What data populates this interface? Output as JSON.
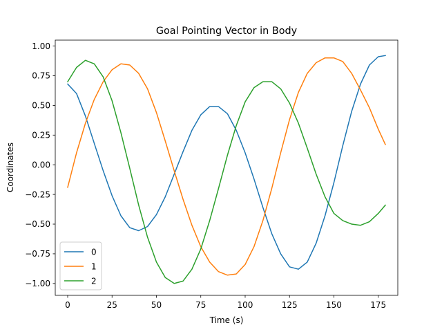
{
  "chart_data": {
    "type": "line",
    "title": "Goal Pointing Vector in Body",
    "xlabel": "Time (s)",
    "ylabel": "Coordinates",
    "xlim": [
      -7,
      186
    ],
    "ylim": [
      -1.1,
      1.05
    ],
    "xticks": [
      0,
      25,
      50,
      75,
      100,
      125,
      150,
      175
    ],
    "xtick_labels": [
      "0",
      "25",
      "50",
      "75",
      "100",
      "125",
      "150",
      "175"
    ],
    "yticks": [
      -1.0,
      -0.75,
      -0.5,
      -0.25,
      0.0,
      0.25,
      0.5,
      0.75,
      1.0
    ],
    "ytick_labels": [
      "−1.00",
      "−0.75",
      "−0.50",
      "−0.25",
      "0.00",
      "0.25",
      "0.50",
      "0.75",
      "1.00"
    ],
    "grid": false,
    "legend_position": "lower-left",
    "series": [
      {
        "name": "0",
        "color": "#1f77b4",
        "points": [
          [
            0,
            0.68
          ],
          [
            5,
            0.6
          ],
          [
            10,
            0.41
          ],
          [
            15,
            0.18
          ],
          [
            20,
            -0.05
          ],
          [
            25,
            -0.26
          ],
          [
            30,
            -0.43
          ],
          [
            35,
            -0.53
          ],
          [
            40,
            -0.555
          ],
          [
            45,
            -0.52
          ],
          [
            50,
            -0.42
          ],
          [
            55,
            -0.27
          ],
          [
            60,
            -0.08
          ],
          [
            65,
            0.11
          ],
          [
            70,
            0.29
          ],
          [
            75,
            0.42
          ],
          [
            80,
            0.49
          ],
          [
            85,
            0.49
          ],
          [
            90,
            0.43
          ],
          [
            95,
            0.29
          ],
          [
            100,
            0.1
          ],
          [
            105,
            -0.12
          ],
          [
            110,
            -0.36
          ],
          [
            115,
            -0.58
          ],
          [
            120,
            -0.75
          ],
          [
            125,
            -0.86
          ],
          [
            130,
            -0.88
          ],
          [
            135,
            -0.82
          ],
          [
            140,
            -0.66
          ],
          [
            145,
            -0.43
          ],
          [
            150,
            -0.15
          ],
          [
            155,
            0.16
          ],
          [
            160,
            0.45
          ],
          [
            165,
            0.68
          ],
          [
            170,
            0.84
          ],
          [
            175,
            0.91
          ],
          [
            179,
            0.92
          ]
        ]
      },
      {
        "name": "1",
        "color": "#ff7f0e",
        "points": [
          [
            0,
            -0.19
          ],
          [
            5,
            0.1
          ],
          [
            10,
            0.35
          ],
          [
            15,
            0.55
          ],
          [
            20,
            0.7
          ],
          [
            25,
            0.8
          ],
          [
            30,
            0.85
          ],
          [
            35,
            0.84
          ],
          [
            40,
            0.77
          ],
          [
            45,
            0.64
          ],
          [
            50,
            0.44
          ],
          [
            55,
            0.2
          ],
          [
            60,
            -0.05
          ],
          [
            65,
            -0.29
          ],
          [
            70,
            -0.51
          ],
          [
            75,
            -0.69
          ],
          [
            80,
            -0.82
          ],
          [
            85,
            -0.9
          ],
          [
            90,
            -0.93
          ],
          [
            95,
            -0.92
          ],
          [
            100,
            -0.84
          ],
          [
            105,
            -0.69
          ],
          [
            110,
            -0.47
          ],
          [
            115,
            -0.2
          ],
          [
            120,
            0.1
          ],
          [
            125,
            0.38
          ],
          [
            130,
            0.61
          ],
          [
            135,
            0.77
          ],
          [
            140,
            0.86
          ],
          [
            145,
            0.9
          ],
          [
            150,
            0.9
          ],
          [
            155,
            0.87
          ],
          [
            160,
            0.77
          ],
          [
            165,
            0.63
          ],
          [
            170,
            0.48
          ],
          [
            175,
            0.3
          ],
          [
            179,
            0.17
          ]
        ]
      },
      {
        "name": "2",
        "color": "#2ca02c",
        "points": [
          [
            0,
            0.7
          ],
          [
            5,
            0.82
          ],
          [
            10,
            0.88
          ],
          [
            15,
            0.85
          ],
          [
            20,
            0.74
          ],
          [
            25,
            0.54
          ],
          [
            30,
            0.27
          ],
          [
            35,
            -0.03
          ],
          [
            40,
            -0.34
          ],
          [
            45,
            -0.61
          ],
          [
            50,
            -0.82
          ],
          [
            55,
            -0.95
          ],
          [
            60,
            -1.0
          ],
          [
            65,
            -0.98
          ],
          [
            70,
            -0.88
          ],
          [
            75,
            -0.71
          ],
          [
            80,
            -0.47
          ],
          [
            85,
            -0.2
          ],
          [
            90,
            0.08
          ],
          [
            95,
            0.33
          ],
          [
            100,
            0.53
          ],
          [
            105,
            0.65
          ],
          [
            110,
            0.7
          ],
          [
            115,
            0.7
          ],
          [
            120,
            0.64
          ],
          [
            125,
            0.52
          ],
          [
            130,
            0.35
          ],
          [
            135,
            0.14
          ],
          [
            140,
            -0.08
          ],
          [
            145,
            -0.27
          ],
          [
            150,
            -0.41
          ],
          [
            155,
            -0.47
          ],
          [
            160,
            -0.5
          ],
          [
            165,
            -0.51
          ],
          [
            170,
            -0.48
          ],
          [
            175,
            -0.41
          ],
          [
            179,
            -0.34
          ]
        ]
      }
    ]
  }
}
